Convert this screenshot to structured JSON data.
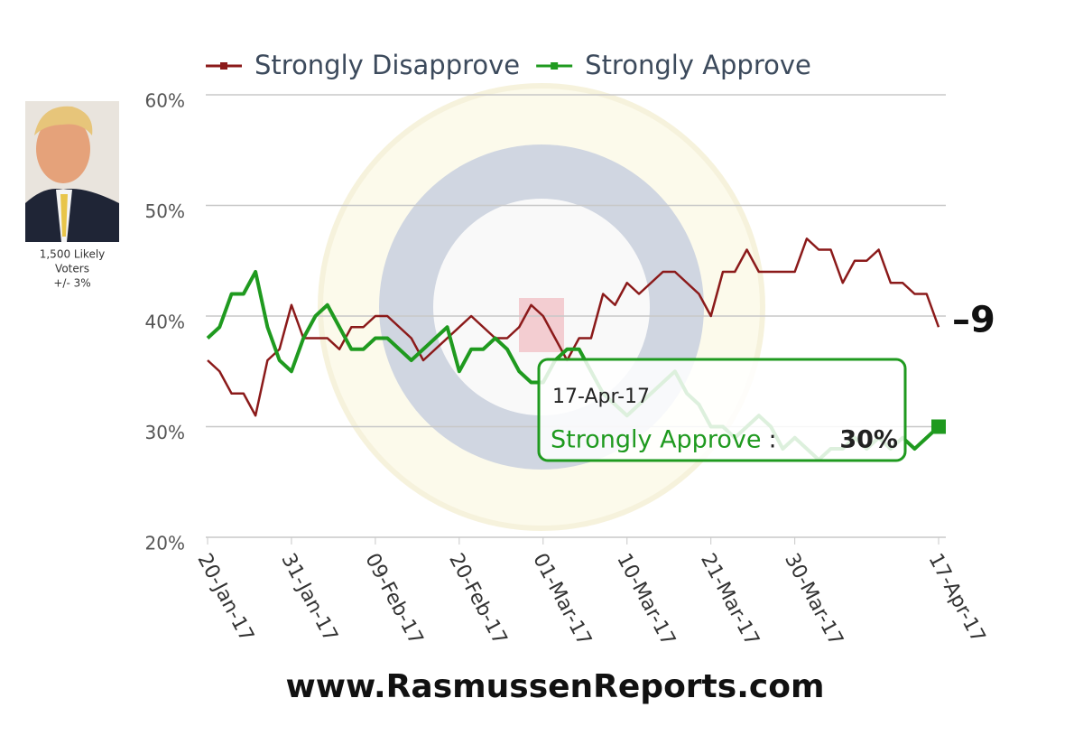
{
  "chart_data": {
    "type": "line",
    "categories": [
      "20-Jan-17",
      null,
      null,
      null,
      null,
      null,
      null,
      "31-Jan-17",
      null,
      null,
      null,
      null,
      null,
      null,
      "09-Feb-17",
      null,
      null,
      null,
      null,
      null,
      null,
      "20-Feb-17",
      null,
      null,
      null,
      null,
      null,
      null,
      "01-Mar-17",
      null,
      null,
      null,
      null,
      null,
      null,
      "10-Mar-17",
      null,
      null,
      null,
      null,
      null,
      null,
      "21-Mar-17",
      null,
      null,
      null,
      null,
      null,
      null,
      "30-Mar-17",
      null,
      null,
      null,
      null,
      null,
      null,
      null,
      null,
      null,
      null,
      null,
      "17-Apr-17"
    ],
    "series": [
      {
        "name": "Strongly Disapprove",
        "color": "#8b1a1a",
        "values": [
          36,
          35,
          33,
          33,
          31,
          36,
          37,
          41,
          38,
          38,
          38,
          37,
          39,
          39,
          40,
          40,
          39,
          38,
          36,
          37,
          38,
          39,
          40,
          39,
          38,
          38,
          39,
          41,
          40,
          38,
          36,
          38,
          38,
          42,
          41,
          43,
          42,
          43,
          44,
          44,
          43,
          42,
          40,
          44,
          44,
          46,
          44,
          44,
          44,
          44,
          47,
          46,
          46,
          43,
          45,
          45,
          46,
          43,
          43,
          42,
          42,
          39
        ]
      },
      {
        "name": "Strongly Approve",
        "color": "#1f9a1f",
        "values": [
          38,
          39,
          42,
          42,
          44,
          39,
          36,
          35,
          38,
          40,
          41,
          39,
          37,
          37,
          38,
          38,
          37,
          36,
          37,
          38,
          39,
          35,
          37,
          37,
          38,
          37,
          35,
          34,
          34,
          36,
          37,
          37,
          35,
          33,
          32,
          31,
          32,
          33,
          34,
          35,
          33,
          32,
          30,
          30,
          29,
          30,
          31,
          30,
          28,
          29,
          28,
          27,
          28,
          28,
          29,
          28,
          29,
          28,
          29,
          28,
          29,
          30
        ]
      }
    ],
    "ylim": [
      20,
      60
    ],
    "yticks": [
      {
        "value": 20,
        "label": "20%"
      },
      {
        "value": 30,
        "label": "30%"
      },
      {
        "value": 40,
        "label": "40%"
      },
      {
        "value": 50,
        "label": "50%"
      },
      {
        "value": 60,
        "label": "60%"
      }
    ],
    "grid": true,
    "annotation": "–9",
    "tooltip": {
      "date": "17-Apr-17",
      "series": "Strongly Approve",
      "value_label": "30%"
    },
    "sidebar": {
      "line1": "1,500 Likely",
      "line2": "Voters",
      "line3": "+/- 3%"
    },
    "footer": "www.RasmussenReports.com"
  }
}
